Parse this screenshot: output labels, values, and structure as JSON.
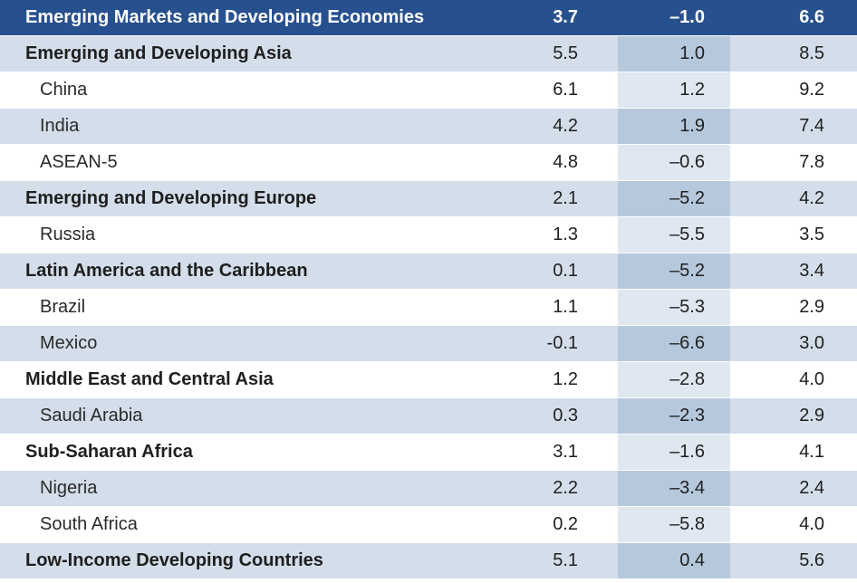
{
  "table": {
    "header": {
      "label": "Emerging Markets and Developing Economies",
      "v1": "3.7",
      "v2": "–1.0",
      "v3": "6.6"
    },
    "rows": [
      {
        "label": "Emerging and Developing Asia",
        "v1": "5.5",
        "v2": "1.0",
        "v3": "8.5"
      },
      {
        "label": "China",
        "v1": "6.1",
        "v2": "1.2",
        "v3": "9.2"
      },
      {
        "label": "India",
        "v1": "4.2",
        "v2": "1.9",
        "v3": "7.4"
      },
      {
        "label": "ASEAN-5",
        "v1": "4.8",
        "v2": "–0.6",
        "v3": "7.8"
      },
      {
        "label": "Emerging and Developing Europe",
        "v1": "2.1",
        "v2": "–5.2",
        "v3": "4.2"
      },
      {
        "label": "Russia",
        "v1": "1.3",
        "v2": "–5.5",
        "v3": "3.5"
      },
      {
        "label": "Latin America and the Caribbean",
        "v1": "0.1",
        "v2": "–5.2",
        "v3": "3.4"
      },
      {
        "label": "Brazil",
        "v1": "1.1",
        "v2": "–5.3",
        "v3": "2.9"
      },
      {
        "label": "Mexico",
        "v1": "-0.1",
        "v2": "–6.6",
        "v3": "3.0"
      },
      {
        "label": "Middle East and Central Asia",
        "v1": "1.2",
        "v2": "–2.8",
        "v3": "4.0"
      },
      {
        "label": "Saudi Arabia",
        "v1": "0.3",
        "v2": "–2.3",
        "v3": "2.9"
      },
      {
        "label": "Sub-Saharan Africa",
        "v1": "3.1",
        "v2": "–1.6",
        "v3": "4.1"
      },
      {
        "label": "Nigeria",
        "v1": "2.2",
        "v2": "–3.4",
        "v3": "2.4"
      },
      {
        "label": "South Africa",
        "v1": "0.2",
        "v2": "–5.8",
        "v3": "4.0"
      },
      {
        "label": "Low-Income Developing Countries",
        "v1": "5.1",
        "v2": "0.4",
        "v3": "5.6"
      }
    ]
  }
}
